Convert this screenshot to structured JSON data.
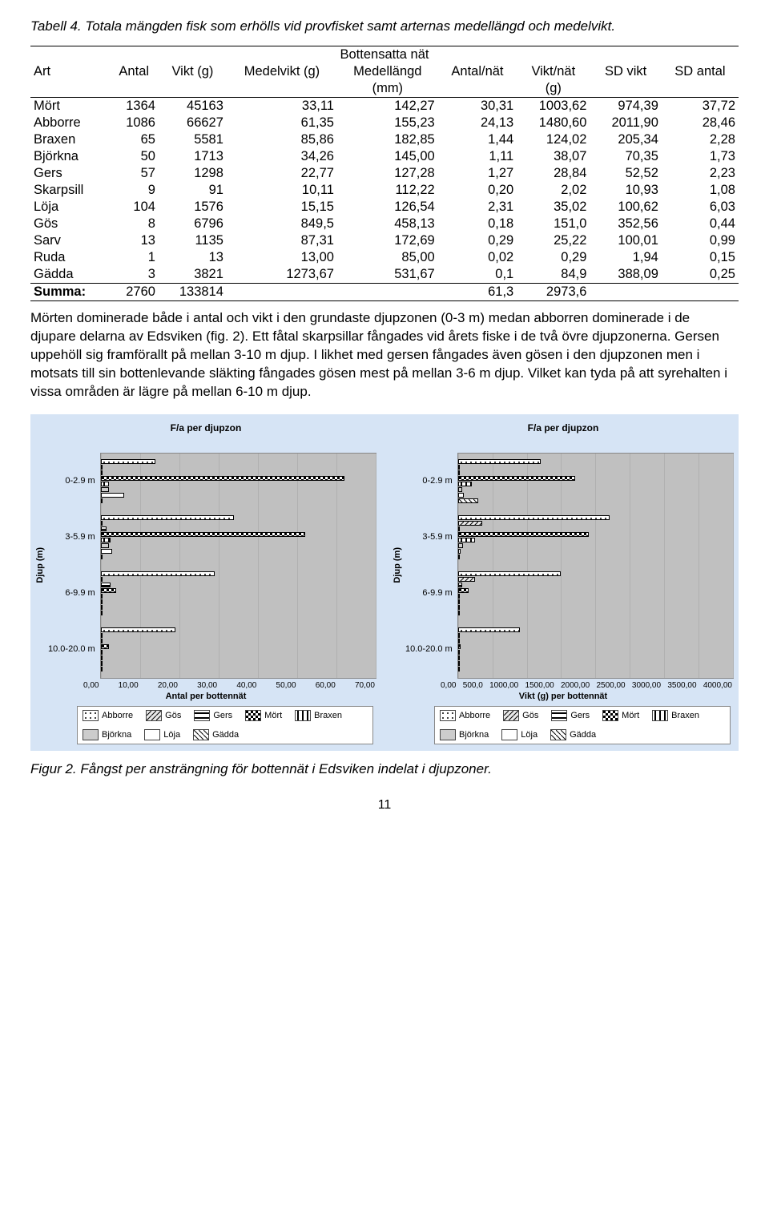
{
  "caption_table": "Tabell 4. Totala mängden fisk som erhölls vid provfisket samt arternas medellängd och medelvikt.",
  "table": {
    "section": "Bottensatta nät",
    "headers1": [
      "Art",
      "Antal",
      "Vikt (g)",
      "Medelvikt (g)",
      "Medellängd",
      "Antal/nät",
      "Vikt/nät",
      "SD vikt",
      "SD antal"
    ],
    "headers2": [
      "",
      "",
      "",
      "",
      "(mm)",
      "",
      "(g)",
      "",
      ""
    ],
    "rows": [
      [
        "Mört",
        "1364",
        "45163",
        "33,11",
        "142,27",
        "30,31",
        "1003,62",
        "974,39",
        "37,72"
      ],
      [
        "Abborre",
        "1086",
        "66627",
        "61,35",
        "155,23",
        "24,13",
        "1480,60",
        "2011,90",
        "28,46"
      ],
      [
        "Braxen",
        "65",
        "5581",
        "85,86",
        "182,85",
        "1,44",
        "124,02",
        "205,34",
        "2,28"
      ],
      [
        "Björkna",
        "50",
        "1713",
        "34,26",
        "145,00",
        "1,11",
        "38,07",
        "70,35",
        "1,73"
      ],
      [
        "Gers",
        "57",
        "1298",
        "22,77",
        "127,28",
        "1,27",
        "28,84",
        "52,52",
        "2,23"
      ],
      [
        "Skarpsill",
        "9",
        "91",
        "10,11",
        "112,22",
        "0,20",
        "2,02",
        "10,93",
        "1,08"
      ],
      [
        "Löja",
        "104",
        "1576",
        "15,15",
        "126,54",
        "2,31",
        "35,02",
        "100,62",
        "6,03"
      ],
      [
        "Gös",
        "8",
        "6796",
        "849,5",
        "458,13",
        "0,18",
        "151,0",
        "352,56",
        "0,44"
      ],
      [
        "Sarv",
        "13",
        "1135",
        "87,31",
        "172,69",
        "0,29",
        "25,22",
        "100,01",
        "0,99"
      ],
      [
        "Ruda",
        "1",
        "13",
        "13,00",
        "85,00",
        "0,02",
        "0,29",
        "1,94",
        "0,15"
      ],
      [
        "Gädda",
        "3",
        "3821",
        "1273,67",
        "531,67",
        "0,1",
        "84,9",
        "388,09",
        "0,25"
      ]
    ],
    "sum": [
      "Summa:",
      "2760",
      "133814",
      "",
      "",
      "61,3",
      "2973,6",
      "",
      ""
    ]
  },
  "paragraph": "Mörten dominerade både i antal och vikt i den grundaste djupzonen (0-3 m) medan abborren dominerade i de djupare delarna av Edsviken (fig. 2). Ett fåtal skarpsillar fångades vid årets fiske i de två övre djupzonerna. Gersen uppehöll sig framförallt på mellan 3-10 m djup. I likhet med gersen fångades även gösen i den djupzonen men i motsats till sin bottenlevande släkting fångades gösen mest på mellan 3-6 m djup. Vilket kan tyda på att syrehalten i vissa områden är lägre på mellan 6-10 m djup.",
  "species": [
    "Abborre",
    "Gös",
    "Gers",
    "Mört",
    "Braxen",
    "Björkna",
    "Löja",
    "Gädda"
  ],
  "patterns": {
    "Abborre": {
      "bg": "#ffffff",
      "borderStyle": "solid",
      "extra": "pattern-dots"
    },
    "Gös": {
      "bg": "#e8e8e8",
      "borderStyle": "solid",
      "extra": "pattern-diag"
    },
    "Gers": {
      "bg": "#ffffff",
      "borderStyle": "solid",
      "extra": "pattern-hstripes"
    },
    "Mört": {
      "bg": "#555555",
      "borderStyle": "solid",
      "extra": "pattern-checker"
    },
    "Braxen": {
      "bg": "#ffffff",
      "borderStyle": "solid",
      "extra": "pattern-vstripes"
    },
    "Björkna": {
      "bg": "#cccccc",
      "borderStyle": "solid",
      "extra": ""
    },
    "Löja": {
      "bg": "#ffffff",
      "borderStyle": "solid",
      "extra": ""
    },
    "Gädda": {
      "bg": "#ffffff",
      "borderStyle": "solid",
      "extra": "pattern-diag2"
    }
  },
  "chart_left": {
    "title": "F/a per djupzon",
    "y_title": "Djup (m)",
    "x_label": "Antal per bottennät",
    "x_max": 70,
    "x_ticks": [
      "0,00",
      "10,00",
      "20,00",
      "30,00",
      "40,00",
      "50,00",
      "60,00",
      "70,00"
    ],
    "zones": [
      "0-2.9 m",
      "3-5.9 m",
      "6-9.9 m",
      "10.0-20.0 m"
    ],
    "data": {
      "0-2.9 m": {
        "Abborre": 14,
        "Gös": 0,
        "Gers": 0.5,
        "Mört": 62,
        "Braxen": 2,
        "Björkna": 2,
        "Löja": 6,
        "Gädda": 0.5
      },
      "3-5.9 m": {
        "Abborre": 34,
        "Gös": 0.4,
        "Gers": 1.5,
        "Mört": 52,
        "Braxen": 2.5,
        "Björkna": 2,
        "Löja": 3,
        "Gädda": 0.2
      },
      "6-9.9 m": {
        "Abborre": 29,
        "Gös": 0.2,
        "Gers": 2.5,
        "Mört": 4,
        "Braxen": 0.5,
        "Björkna": 0.3,
        "Löja": 0.5,
        "Gädda": 0
      },
      "10.0-20.0 m": {
        "Abborre": 19,
        "Gös": 0,
        "Gers": 0.5,
        "Mört": 2,
        "Braxen": 0.3,
        "Björkna": 0,
        "Löja": 0,
        "Gädda": 0
      }
    }
  },
  "chart_right": {
    "title": "F/a per djupzon",
    "y_title": "Djup (m)",
    "x_label": "Vikt (g) per bottennät",
    "x_max": 4000,
    "x_ticks": [
      "0,00",
      "500,0",
      "1000,00",
      "1500,00",
      "2000,00",
      "2500,00",
      "3000,00",
      "3500,00",
      "4000,00"
    ],
    "zones": [
      "0-2.9 m",
      "3-5.9 m",
      "6-9.9 m",
      "10.0-20.0 m"
    ],
    "data": {
      "0-2.9 m": {
        "Abborre": 1200,
        "Gös": 0,
        "Gers": 10,
        "Mört": 1700,
        "Braxen": 200,
        "Björkna": 60,
        "Löja": 80,
        "Gädda": 300
      },
      "3-5.9 m": {
        "Abborre": 2200,
        "Gös": 350,
        "Gers": 30,
        "Mört": 1900,
        "Braxen": 250,
        "Björkna": 70,
        "Löja": 40,
        "Gädda": 20
      },
      "6-9.9 m": {
        "Abborre": 1500,
        "Gös": 250,
        "Gers": 60,
        "Mört": 150,
        "Braxen": 30,
        "Björkna": 10,
        "Löja": 8,
        "Gädda": 0
      },
      "10.0-20.0 m": {
        "Abborre": 900,
        "Gös": 0,
        "Gers": 10,
        "Mört": 40,
        "Braxen": 15,
        "Björkna": 0,
        "Löja": 0,
        "Gädda": 0
      }
    }
  },
  "caption_figure": "Figur 2. Fångst per ansträngning för bottennät i Edsviken indelat i djupzoner.",
  "page_number": "11"
}
